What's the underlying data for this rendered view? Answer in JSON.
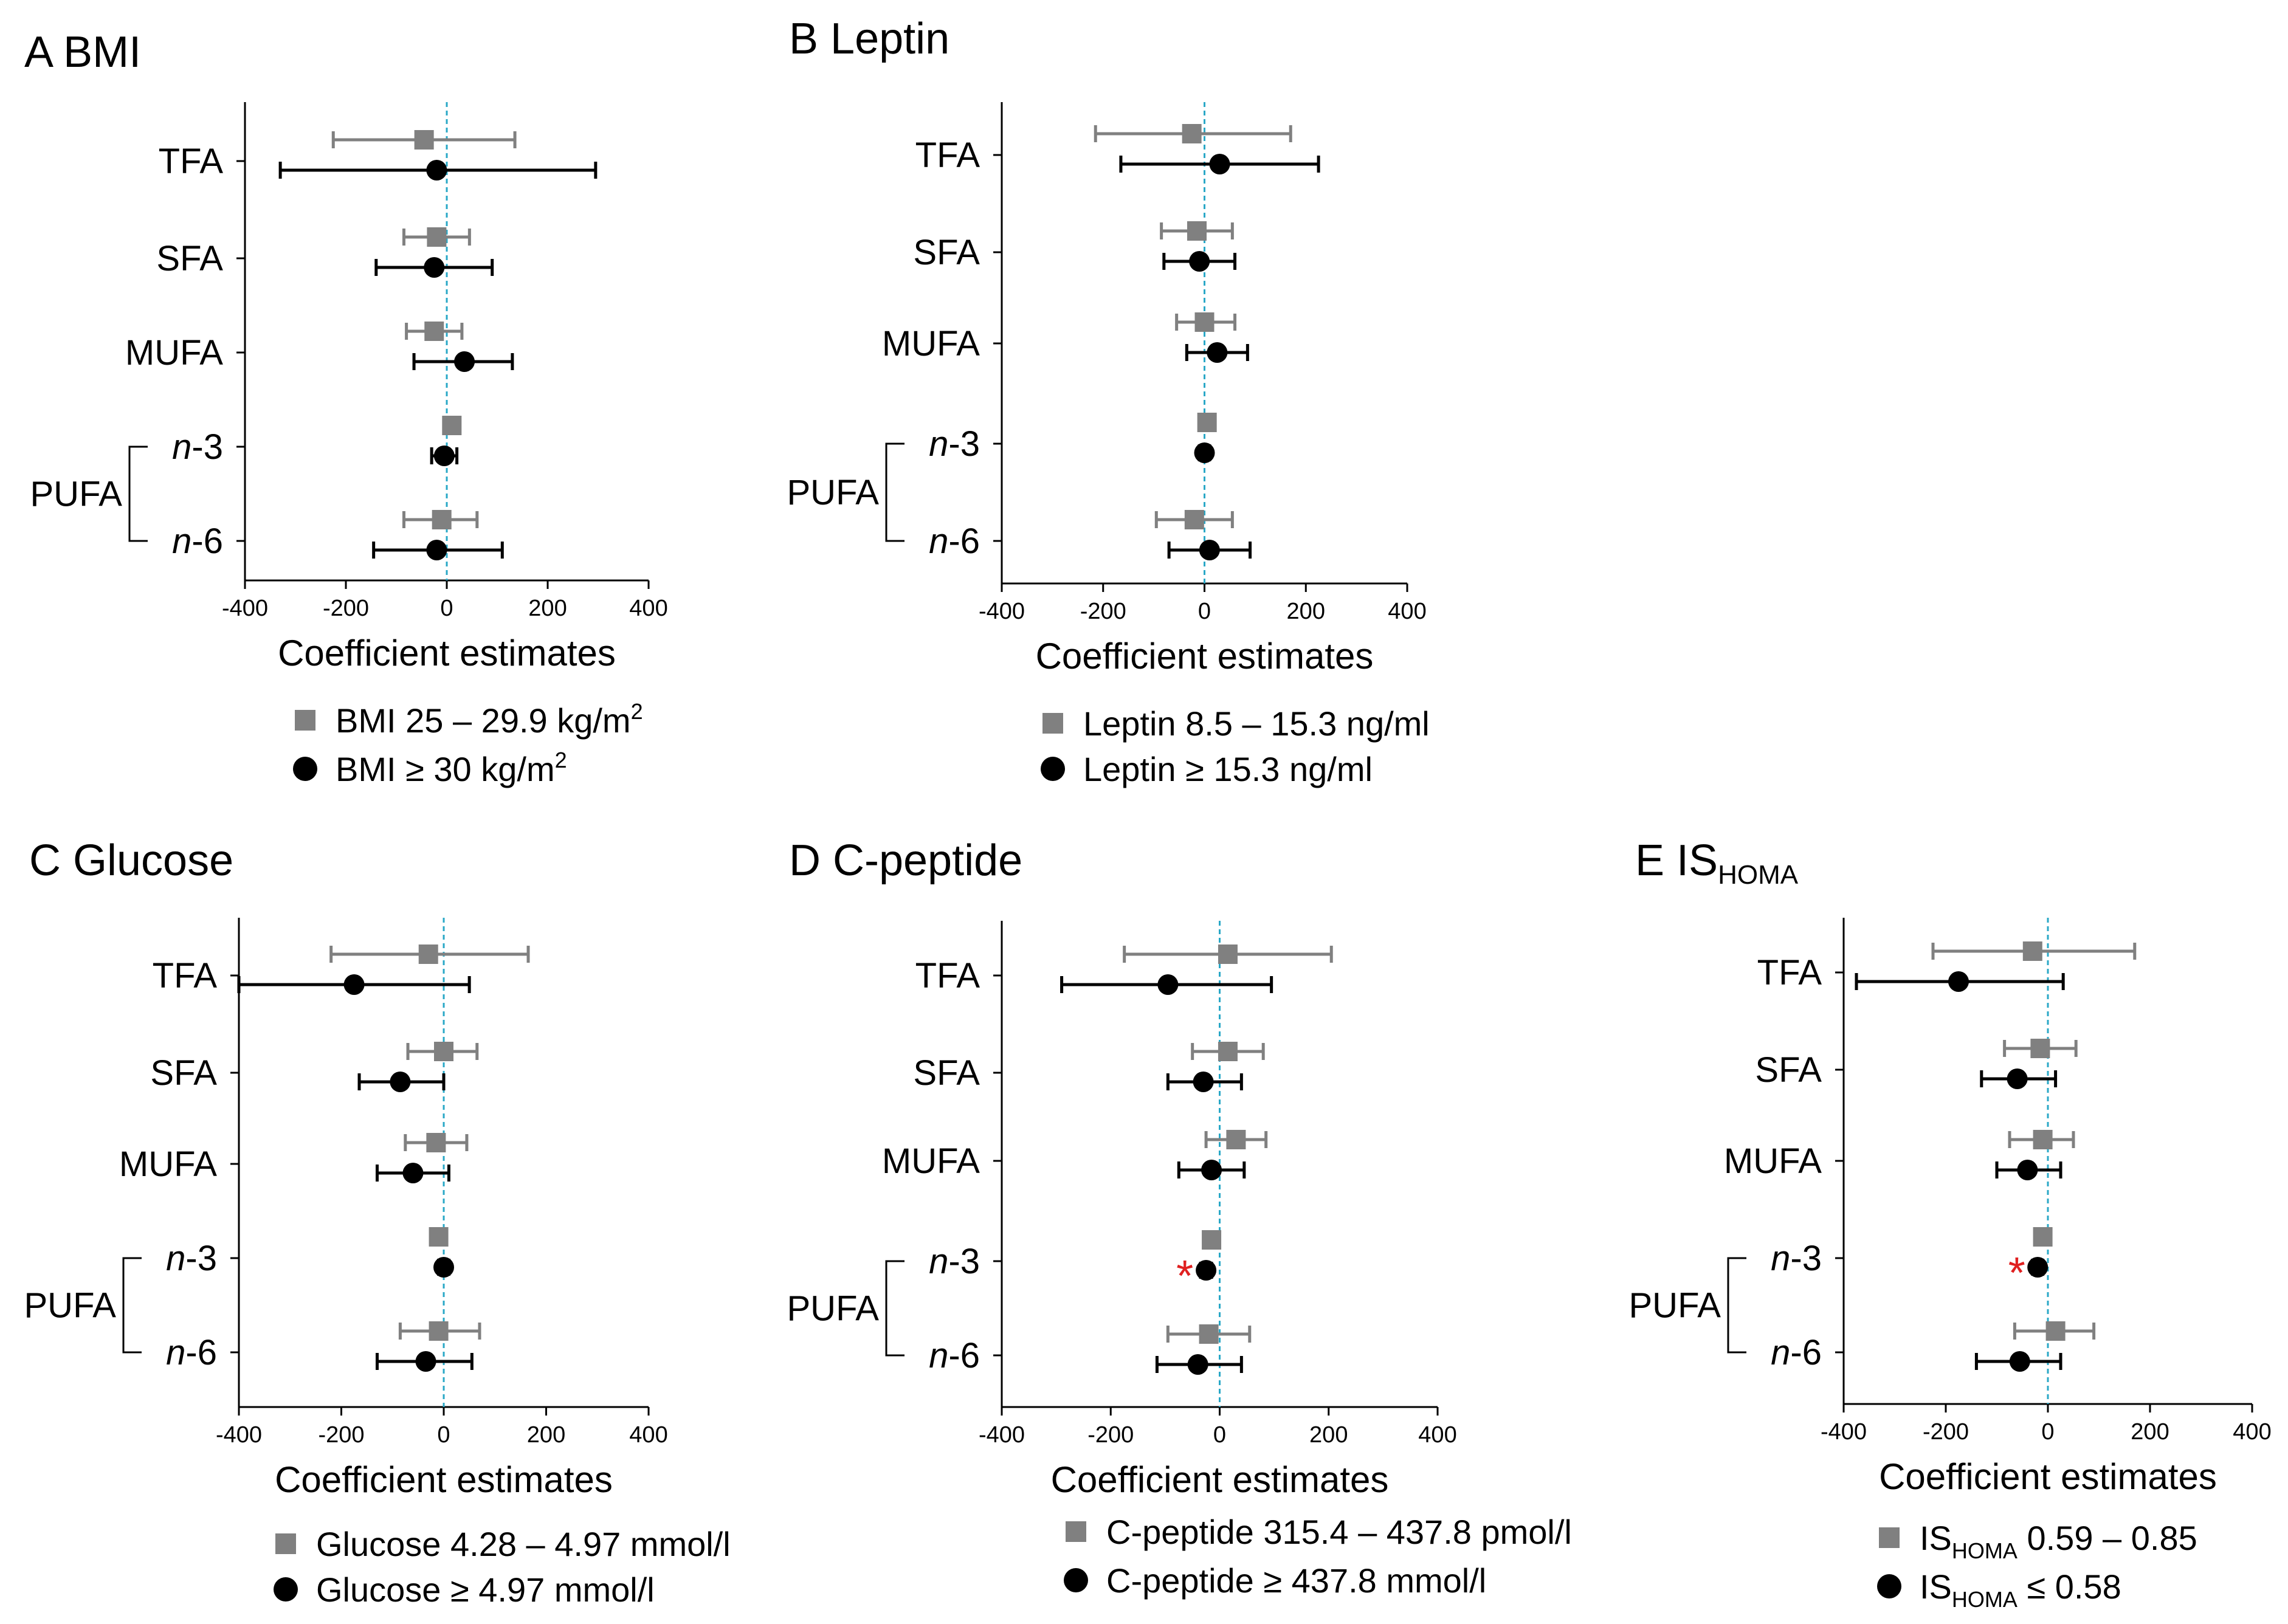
{
  "chart_data": [
    {
      "id": "A",
      "type": "forest",
      "panel_letter": "A",
      "title": "BMI",
      "title_sub": "",
      "xlabel": "Coefficient estimates",
      "xlim": [
        -400,
        400
      ],
      "xticks": [
        -400,
        -200,
        0,
        200,
        400
      ],
      "xtick_labels": [
        "-400",
        "-200",
        "0",
        "200",
        "400"
      ],
      "reference_line": 0,
      "categories": [
        "TFA",
        "SFA",
        "MUFA",
        "n-3",
        "n-6"
      ],
      "category_main": [
        "TFA",
        "SFA",
        "MUFA",
        "n",
        "n"
      ],
      "category_suffix": [
        "",
        "",
        "",
        "-3",
        "-6"
      ],
      "group_label": "PUFA",
      "series": [
        {
          "name": "BMI 25 – 29.9 kg/m²",
          "label_main": "BMI 25 – 29.9 kg/m",
          "label_sup": "2",
          "label_rest": "",
          "marker": "square",
          "color": "#808080",
          "estimates": [
            -45,
            -20,
            -25,
            10,
            -10
          ],
          "lower": [
            -225,
            -85,
            -80,
            -5,
            -85
          ],
          "upper": [
            135,
            45,
            30,
            25,
            60
          ]
        },
        {
          "name": "BMI ≥ 30 kg/m²",
          "label_main": "BMI ≥ 30 kg/m",
          "label_sup": "2",
          "label_rest": "",
          "marker": "circle",
          "color": "#000000",
          "estimates": [
            -20,
            -25,
            35,
            -5,
            -20
          ],
          "lower": [
            -330,
            -140,
            -65,
            -30,
            -145
          ],
          "upper": [
            295,
            90,
            130,
            20,
            110
          ]
        }
      ]
    },
    {
      "id": "B",
      "type": "forest",
      "panel_letter": "B",
      "title": "Leptin",
      "title_sub": "",
      "xlabel": "Coefficient estimates",
      "xlim": [
        -400,
        400
      ],
      "xticks": [
        -400,
        -200,
        0,
        200,
        400
      ],
      "xtick_labels": [
        "-400",
        "-200",
        "0",
        "200",
        "400"
      ],
      "reference_line": 0,
      "categories": [
        "TFA",
        "SFA",
        "MUFA",
        "n-3",
        "n-6"
      ],
      "category_main": [
        "TFA",
        "SFA",
        "MUFA",
        "n",
        "n"
      ],
      "category_suffix": [
        "",
        "",
        "",
        "-3",
        "-6"
      ],
      "group_label": "PUFA",
      "series": [
        {
          "name": "Leptin 8.5 – 15.3 ng/ml",
          "label_main": "Leptin 8.5 – 15.3 ng/ml",
          "label_sup": "",
          "label_rest": "",
          "marker": "square",
          "color": "#808080",
          "estimates": [
            -25,
            -15,
            0,
            5,
            -20
          ],
          "lower": [
            -215,
            -85,
            -55,
            0,
            -95
          ],
          "upper": [
            170,
            55,
            60,
            10,
            55
          ]
        },
        {
          "name": "Leptin ≥ 15.3 ng/ml",
          "label_main": "Leptin ≥ 15.3 ng/ml",
          "label_sup": "",
          "label_rest": "",
          "marker": "circle",
          "color": "#000000",
          "estimates": [
            30,
            -10,
            25,
            0,
            10
          ],
          "lower": [
            -165,
            -80,
            -35,
            -10,
            -70
          ],
          "upper": [
            225,
            60,
            85,
            10,
            90
          ]
        }
      ]
    },
    {
      "id": "C",
      "type": "forest",
      "panel_letter": "C",
      "title": "Glucose",
      "title_sub": "",
      "xlabel": "Coefficient estimates",
      "xlim": [
        -400,
        400
      ],
      "xticks": [
        -400,
        -200,
        0,
        200,
        400
      ],
      "xtick_labels": [
        "-400",
        "-200",
        "0",
        "200",
        "400"
      ],
      "reference_line": 0,
      "categories": [
        "TFA",
        "SFA",
        "MUFA",
        "n-3",
        "n-6"
      ],
      "category_main": [
        "TFA",
        "SFA",
        "MUFA",
        "n",
        "n"
      ],
      "category_suffix": [
        "",
        "",
        "",
        "-3",
        "-6"
      ],
      "group_label": "PUFA",
      "series": [
        {
          "name": "Glucose 4.28 – 4.97 mmol/l",
          "label_main": "Glucose 4.28 – 4.97 mmol/l",
          "label_sup": "",
          "label_rest": "",
          "marker": "square",
          "color": "#808080",
          "estimates": [
            -30,
            0,
            -15,
            -10,
            -10
          ],
          "lower": [
            -220,
            -70,
            -75,
            -15,
            -85
          ],
          "upper": [
            165,
            65,
            45,
            0,
            70
          ]
        },
        {
          "name": "Glucose ≥ 4.97 mmol/l",
          "label_main": "Glucose ≥ 4.97 mmol/l",
          "label_sup": "",
          "label_rest": "",
          "marker": "circle",
          "color": "#000000",
          "estimates": [
            -175,
            -85,
            -60,
            0,
            -35
          ],
          "lower": [
            -400,
            -165,
            -130,
            -10,
            -130
          ],
          "upper": [
            50,
            0,
            10,
            10,
            55
          ]
        }
      ]
    },
    {
      "id": "D",
      "type": "forest",
      "panel_letter": "D",
      "title": "C-peptide",
      "title_sub": "",
      "xlabel": "Coefficient estimates",
      "xlim": [
        -400,
        400
      ],
      "xticks": [
        -400,
        -200,
        0,
        200,
        400
      ],
      "xtick_labels": [
        "-400",
        "-200",
        "0",
        "200",
        "400"
      ],
      "reference_line": 0,
      "categories": [
        "TFA",
        "SFA",
        "MUFA",
        "n-3",
        "n-6"
      ],
      "category_main": [
        "TFA",
        "SFA",
        "MUFA",
        "n",
        "n"
      ],
      "category_suffix": [
        "",
        "",
        "",
        "-3",
        "-6"
      ],
      "group_label": "PUFA",
      "significance_marker": "*",
      "significant": [
        {
          "series": 1,
          "category": "n-3"
        }
      ],
      "series": [
        {
          "name": "C-peptide 315.4 – 437.8 pmol/l",
          "label_main": "C-peptide 315.4 – 437.8 pmol/l",
          "label_sup": "",
          "label_rest": "",
          "marker": "square",
          "color": "#808080",
          "estimates": [
            15,
            15,
            30,
            -15,
            -20
          ],
          "lower": [
            -175,
            -50,
            -25,
            -20,
            -95
          ],
          "upper": [
            205,
            80,
            85,
            -10,
            55
          ]
        },
        {
          "name": "C-peptide ≥ 437.8 mmol/l",
          "label_main": "C-peptide ≥ 437.8 mmol/l",
          "label_sup": "",
          "label_rest": "",
          "marker": "circle",
          "color": "#000000",
          "estimates": [
            -95,
            -30,
            -15,
            -25,
            -40
          ],
          "lower": [
            -290,
            -95,
            -75,
            -35,
            -115
          ],
          "upper": [
            95,
            40,
            45,
            -15,
            40
          ]
        }
      ]
    },
    {
      "id": "E",
      "type": "forest",
      "panel_letter": "E",
      "title": "IS",
      "title_sub": "HOMA",
      "xlabel": "Coefficient estimates",
      "xlim": [
        -400,
        400
      ],
      "xticks": [
        -400,
        -200,
        0,
        200,
        400
      ],
      "xtick_labels": [
        "-400",
        "-200",
        "0",
        "200",
        "400"
      ],
      "reference_line": 0,
      "categories": [
        "TFA",
        "SFA",
        "MUFA",
        "n-3",
        "n-6"
      ],
      "category_main": [
        "TFA",
        "SFA",
        "MUFA",
        "n",
        "n"
      ],
      "category_suffix": [
        "",
        "",
        "",
        "-3",
        "-6"
      ],
      "group_label": "PUFA",
      "significance_marker": "*",
      "significant": [
        {
          "series": 1,
          "category": "n-3"
        }
      ],
      "series": [
        {
          "name": "IS_HOMA 0.59 – 0.85",
          "label_main": "IS",
          "label_sub": "HOMA",
          "label_rest": "  0.59 – 0.85",
          "marker": "square",
          "color": "#808080",
          "estimates": [
            -30,
            -15,
            -10,
            -10,
            15
          ],
          "lower": [
            -225,
            -85,
            -75,
            -15,
            -65
          ],
          "upper": [
            170,
            55,
            50,
            -5,
            90
          ]
        },
        {
          "name": "IS_HOMA ≤ 0.58",
          "label_main": "IS",
          "label_sub": "HOMA",
          "label_rest": " ≤ 0.58",
          "marker": "circle",
          "color": "#000000",
          "estimates": [
            -175,
            -60,
            -40,
            -20,
            -55
          ],
          "lower": [
            -375,
            -130,
            -100,
            -30,
            -140
          ],
          "upper": [
            30,
            15,
            25,
            -10,
            25
          ]
        }
      ]
    }
  ],
  "colors": {
    "reference_line": "#2aa8c7",
    "significance": "#e02020",
    "axis": "#000000"
  }
}
